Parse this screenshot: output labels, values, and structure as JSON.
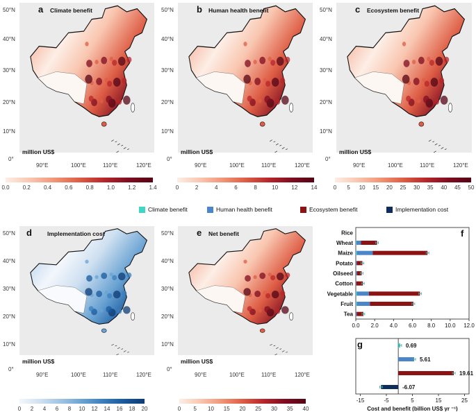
{
  "maps": [
    {
      "id": "a",
      "title": "Climate benefit",
      "unit": "million US$",
      "ticks": [
        "0.0",
        "0.2",
        "0.4",
        "0.6",
        "0.8",
        "1.0",
        "1.2",
        "1.4"
      ],
      "scale": "red"
    },
    {
      "id": "b",
      "title": "Human health benefit",
      "unit": "million US$",
      "ticks": [
        "0",
        "2",
        "4",
        "6",
        "8",
        "10",
        "12",
        "14"
      ],
      "scale": "red"
    },
    {
      "id": "c",
      "title": "Ecosystem benefit",
      "unit": "million US$",
      "ticks": [
        "0",
        "5",
        "10",
        "15",
        "20",
        "25",
        "30",
        "35",
        "40",
        "45",
        "50"
      ],
      "scale": "red"
    },
    {
      "id": "d",
      "title": "Implementation cost",
      "unit": "million US$",
      "ticks": [
        "0",
        "2",
        "4",
        "6",
        "8",
        "10",
        "12",
        "14",
        "16",
        "18",
        "20"
      ],
      "scale": "blue"
    },
    {
      "id": "e",
      "title": "Net benefit",
      "unit": "million US$",
      "ticks": [
        "0",
        "5",
        "10",
        "15",
        "20",
        "25",
        "30",
        "35",
        "40"
      ],
      "scale": "red"
    }
  ],
  "map_axes": {
    "lat_labels": [
      "50°N",
      "40°N",
      "30°N",
      "20°N",
      "10°N",
      "0°"
    ],
    "lon_labels": [
      "90°E",
      "100°E",
      "110°E",
      "120°E"
    ]
  },
  "legend": [
    {
      "label": "Climate benefit",
      "color": "#3fd6c6"
    },
    {
      "label": "Human health benefit",
      "color": "#4a86c8"
    },
    {
      "label": "Ecosystem benefit",
      "color": "#8b1313"
    },
    {
      "label": "Implementation cost",
      "color": "#0d2d5c"
    }
  ],
  "chart_data": [
    {
      "panel": "f",
      "type": "bar",
      "orientation": "horizontal",
      "stacked": true,
      "categories": [
        "Rice",
        "Wheat",
        "Maize",
        "Potato",
        "Oilseed",
        "Cotton",
        "Vegetable",
        "Fruit",
        "Tea"
      ],
      "series": [
        {
          "name": "Climate benefit",
          "color": "#3fd6c6",
          "values": [
            0,
            0.05,
            0.1,
            0,
            0.02,
            0,
            0.1,
            0.1,
            0
          ]
        },
        {
          "name": "Human health benefit",
          "color": "#4a86c8",
          "values": [
            0,
            0.5,
            1.7,
            0.1,
            0.1,
            0.05,
            1.3,
            1.4,
            0.1
          ]
        },
        {
          "name": "Ecosystem benefit",
          "color": "#8b1313",
          "values": [
            0,
            1.7,
            5.8,
            0.6,
            0.5,
            0.7,
            5.4,
            4.6,
            0.7
          ]
        }
      ],
      "xlim": [
        0,
        12
      ],
      "xticks": [
        "0.0",
        "2.0",
        "4.0",
        "6.0",
        "8.0",
        "10.0",
        "12.0"
      ]
    },
    {
      "panel": "g",
      "type": "bar",
      "orientation": "horizontal",
      "categories": [
        "Climate benefit",
        "Human health benefit",
        "Ecosystem benefit",
        "Implementation cost"
      ],
      "values": [
        0.69,
        5.61,
        19.61,
        -6.07
      ],
      "labels": [
        "0.69",
        "5.61",
        "19.61",
        "-6.07"
      ],
      "colors": [
        "#3fd6c6",
        "#4a86c8",
        "#8b1313",
        "#0d2d5c"
      ],
      "xlim": [
        -15,
        25
      ],
      "xticks": [
        "-15",
        "-5",
        "5",
        "15",
        "25"
      ],
      "xlabel": "Cost and benefit (billion US$ yr ⁻¹)"
    }
  ]
}
